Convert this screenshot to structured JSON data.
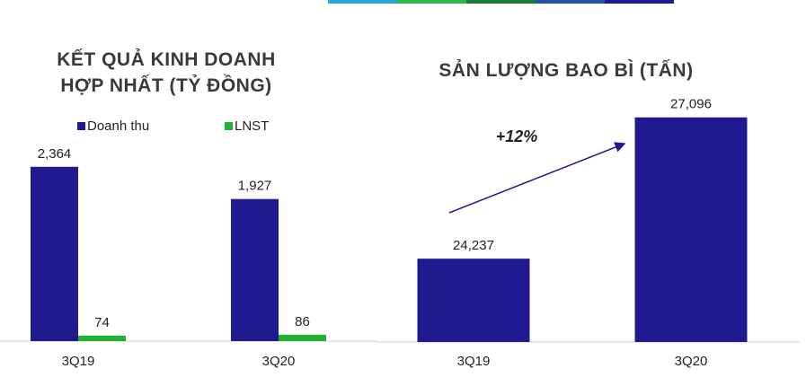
{
  "chart_data": [
    {
      "type": "bar",
      "title": "KẾT QUẢ KINH DOANH HỢP NHẤT (TỶ ĐỒNG)",
      "categories": [
        "3Q19",
        "3Q20"
      ],
      "series": [
        {
          "name": "Doanh thu",
          "color": "#1f1a8f",
          "values": [
            2364,
            1927
          ],
          "value_labels": [
            "2,364",
            "1,927"
          ]
        },
        {
          "name": "LNST",
          "color": "#22b02f",
          "values": [
            74,
            86
          ]
        }
      ],
      "ylim": [
        0,
        2800
      ]
    },
    {
      "type": "bar",
      "title": "SẢN LƯỢNG BAO BÌ (TẤN)",
      "categories": [
        "3Q19",
        "3Q20"
      ],
      "series": [
        {
          "color": "#1f1a8f",
          "values": [
            24237,
            27096
          ],
          "value_labels": [
            "24,237",
            "27,096"
          ]
        }
      ],
      "ylim": [
        22550,
        27600
      ],
      "annotation": "+12%"
    }
  ]
}
